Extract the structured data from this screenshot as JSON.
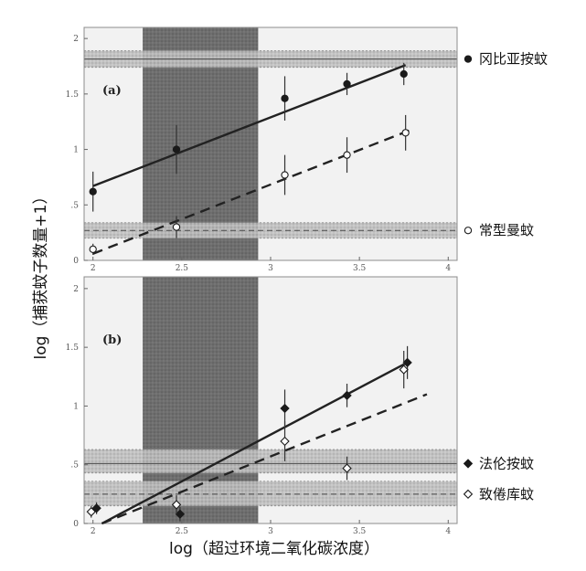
{
  "y_axis_title": "log（捕获蚊子数量+1）",
  "x_axis_title": "log（超过环境二氧化碳浓度）",
  "chart_data": [
    {
      "type": "scatter",
      "panel_label": "(a)",
      "xlim": [
        1.95,
        4.05
      ],
      "ylim": [
        0,
        2.1
      ],
      "x_ticks": [
        "2",
        "2.5",
        "3",
        "3.5",
        "4"
      ],
      "y_ticks": [
        "0",
        ".5",
        "1",
        "1.5",
        "2"
      ],
      "shaded_x_band": [
        2.28,
        2.93
      ],
      "series": [
        {
          "name": "冈比亚按蚊",
          "marker": "filled-circle",
          "line_style": "solid",
          "points": [
            {
              "x": 2.0,
              "y": 0.62,
              "err": 0.18
            },
            {
              "x": 2.47,
              "y": 1.0,
              "err": 0.22
            },
            {
              "x": 3.08,
              "y": 1.46,
              "err": 0.2
            },
            {
              "x": 3.43,
              "y": 1.59,
              "err": 0.1
            },
            {
              "x": 3.75,
              "y": 1.68,
              "err": 0.1
            }
          ],
          "fit": [
            [
              2.0,
              0.67
            ],
            [
              3.76,
              1.76
            ]
          ],
          "ref_band": [
            1.74,
            1.89
          ],
          "ref_level": 1.815
        },
        {
          "name": "常型曼蚊",
          "marker": "open-circle",
          "line_style": "dashed",
          "points": [
            {
              "x": 2.0,
              "y": 0.1,
              "err": 0.05
            },
            {
              "x": 2.47,
              "y": 0.3,
              "err": 0.1
            },
            {
              "x": 3.08,
              "y": 0.77,
              "err": 0.18
            },
            {
              "x": 3.43,
              "y": 0.95,
              "err": 0.16
            },
            {
              "x": 3.76,
              "y": 1.15,
              "err": 0.16
            }
          ],
          "fit": [
            [
              2.0,
              0.06
            ],
            [
              3.78,
              1.17
            ]
          ],
          "ref_band": [
            0.2,
            0.34
          ],
          "ref_level": 0.27
        }
      ]
    },
    {
      "type": "scatter",
      "panel_label": "(b)",
      "xlim": [
        1.95,
        4.05
      ],
      "ylim": [
        0,
        2.1
      ],
      "x_ticks": [
        "2",
        "2.5",
        "3",
        "3.5",
        "4"
      ],
      "y_ticks": [
        "0",
        ".5",
        "1",
        "1.5",
        "2"
      ],
      "shaded_x_band": [
        2.28,
        2.93
      ],
      "series": [
        {
          "name": "法伦按蚊",
          "marker": "filled-diamond",
          "line_style": "solid",
          "points": [
            {
              "x": 2.02,
              "y": 0.13,
              "err": 0.05
            },
            {
              "x": 2.49,
              "y": 0.08,
              "err": 0.06
            },
            {
              "x": 3.08,
              "y": 0.98,
              "err": 0.16
            },
            {
              "x": 3.43,
              "y": 1.09,
              "err": 0.1
            },
            {
              "x": 3.77,
              "y": 1.37,
              "err": 0.14
            }
          ],
          "fit": [
            [
              2.05,
              0.0
            ],
            [
              3.77,
              1.37
            ]
          ],
          "ref_band": [
            0.43,
            0.63
          ],
          "ref_level": 0.51
        },
        {
          "name": "致倦库蚊",
          "marker": "open-diamond",
          "line_style": "dashed",
          "points": [
            {
              "x": 1.99,
              "y": 0.1,
              "err": 0.05
            },
            {
              "x": 2.47,
              "y": 0.16,
              "err": 0.08
            },
            {
              "x": 3.08,
              "y": 0.7,
              "err": 0.17
            },
            {
              "x": 3.43,
              "y": 0.47,
              "err": 0.1
            },
            {
              "x": 3.75,
              "y": 1.31,
              "err": 0.16
            }
          ],
          "fit": [
            [
              2.05,
              0.0
            ],
            [
              3.88,
              1.1
            ]
          ],
          "ref_band": [
            0.15,
            0.36
          ],
          "ref_level": 0.25
        }
      ]
    }
  ]
}
